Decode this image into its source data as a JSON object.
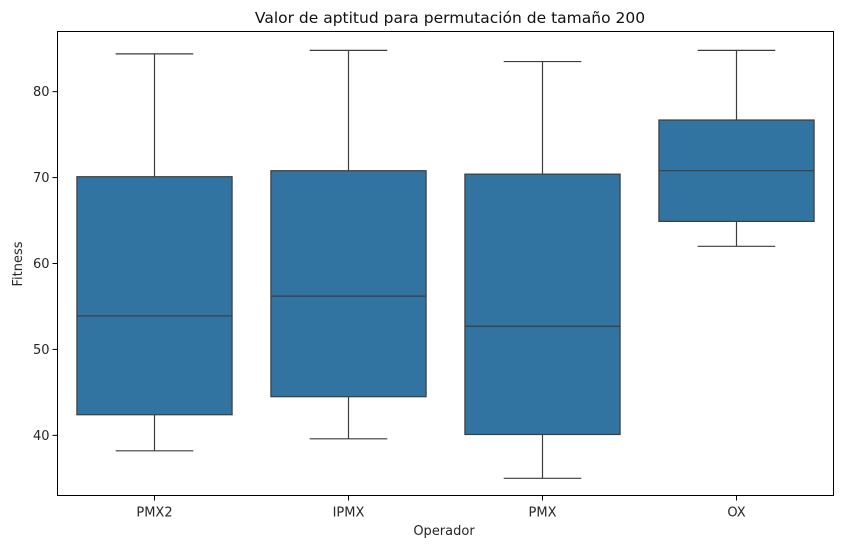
{
  "chart_data": {
    "type": "box",
    "title": "Valor de aptitud para permutación de tamaño 200",
    "xlabel": "Operador",
    "ylabel": "Fitness",
    "ylim": [
      33,
      87
    ],
    "yticks": [
      40,
      50,
      60,
      70,
      80
    ],
    "grid": false,
    "box_color": "#3274a1",
    "line_color": "#3d3d3d",
    "categories": [
      "PMX2",
      "IPMX",
      "PMX",
      "OX"
    ],
    "boxes": [
      {
        "category": "PMX2",
        "whisker_low": 38.2,
        "q1": 42.4,
        "median": 53.9,
        "q3": 70.1,
        "whisker_high": 84.4
      },
      {
        "category": "IPMX",
        "whisker_low": 39.6,
        "q1": 44.5,
        "median": 56.2,
        "q3": 70.8,
        "whisker_high": 84.8
      },
      {
        "category": "PMX",
        "whisker_low": 35.0,
        "q1": 40.1,
        "median": 52.7,
        "q3": 70.4,
        "whisker_high": 83.5
      },
      {
        "category": "OX",
        "whisker_low": 62.0,
        "q1": 64.9,
        "median": 70.8,
        "q3": 76.7,
        "whisker_high": 84.8
      }
    ]
  }
}
